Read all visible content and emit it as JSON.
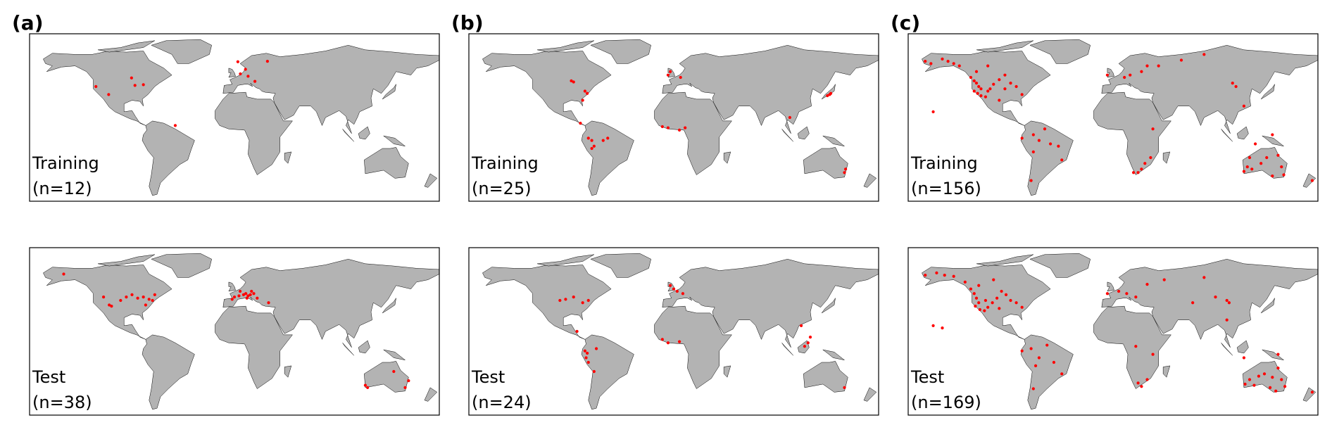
{
  "panels": [
    {
      "label": "(a)",
      "maps": [
        {
          "title": "Training",
          "count": "(n=12)",
          "points": [
            [
              -121.7,
              42
            ],
            [
              -90.4,
              49.5
            ],
            [
              -87.4,
              43
            ],
            [
              -110.5,
              35
            ],
            [
              -80,
              43.6
            ],
            [
              -52,
              8
            ],
            [
              3,
              63.6
            ],
            [
              5.2,
              53
            ],
            [
              12,
              51
            ],
            [
              18,
              46.5
            ],
            [
              29,
              64
            ],
            [
              9.7,
              57
            ]
          ]
        },
        {
          "title": "Test",
          "count": "(n=38)",
          "points": [
            [
              -150,
              65
            ],
            [
              -115,
              45
            ],
            [
              -110,
              38
            ],
            [
              -108,
              37
            ],
            [
              -100,
              42
            ],
            [
              -95,
              45
            ],
            [
              -90,
              47
            ],
            [
              -85,
              44
            ],
            [
              -80,
              45
            ],
            [
              -75,
              43
            ],
            [
              -72,
              42
            ],
            [
              -78,
              38
            ],
            [
              -70,
              47
            ],
            [
              -2,
              43
            ],
            [
              0,
              45
            ],
            [
              4,
              46
            ],
            [
              8,
              47
            ],
            [
              10,
              48
            ],
            [
              12,
              46
            ],
            [
              14,
              47
            ],
            [
              15,
              50
            ],
            [
              17,
              48
            ],
            [
              11,
              44
            ],
            [
              5,
              50
            ],
            [
              20,
              44
            ],
            [
              30,
              40
            ],
            [
              153,
              -28
            ],
            [
              140,
              -20
            ],
            [
              150,
              -34
            ],
            [
              115,
              -32
            ],
            [
              117,
              -34
            ]
          ]
        }
      ]
    },
    {
      "label": "(b)",
      "maps": [
        {
          "title": "Training",
          "count": "(n=25)",
          "points": [
            [
              -90,
              47
            ],
            [
              -88,
              46
            ],
            [
              -78,
              38
            ],
            [
              -76,
              36
            ],
            [
              -80,
              30
            ],
            [
              -82,
              10
            ],
            [
              -75,
              -3
            ],
            [
              -72,
              -5
            ],
            [
              -62,
              -5
            ],
            [
              -58,
              -3
            ],
            [
              -70,
              -10
            ],
            [
              -72,
              -12
            ],
            [
              -5,
              52
            ],
            [
              -3,
              55
            ],
            [
              -10,
              7
            ],
            [
              -5,
              6
            ],
            [
              5,
              4
            ],
            [
              10,
              6
            ],
            [
              102,
              15
            ],
            [
              135,
              34
            ],
            [
              137,
              35
            ],
            [
              138,
              36
            ],
            [
              151,
              -30
            ],
            [
              150,
              -33
            ],
            [
              6,
              50
            ]
          ]
        },
        {
          "title": "Test",
          "count": "(n=24)",
          "points": [
            [
              -100,
              42
            ],
            [
              -95,
              43
            ],
            [
              -88,
              45
            ],
            [
              -80,
              40
            ],
            [
              -75,
              42
            ],
            [
              -85,
              15
            ],
            [
              -78,
              -2
            ],
            [
              -76,
              -4
            ],
            [
              -77,
              -8
            ],
            [
              -75,
              -12
            ],
            [
              -70,
              -20
            ],
            [
              -68,
              0
            ],
            [
              -3,
              55
            ],
            [
              0,
              52
            ],
            [
              3,
              50
            ],
            [
              8,
              48
            ],
            [
              -10,
              8
            ],
            [
              -5,
              5
            ],
            [
              5,
              6
            ],
            [
              112,
              20
            ],
            [
              118,
              5
            ],
            [
              115,
              2
            ],
            [
              120,
              10
            ],
            [
              150,
              -34
            ]
          ]
        }
      ]
    },
    {
      "label": "(c)",
      "maps": [
        {
          "title": "Training",
          "count": "(n=156)",
          "points": [
            [
              -165,
              64
            ],
            [
              -160,
              62
            ],
            [
              -150,
              66
            ],
            [
              -145,
              64
            ],
            [
              -140,
              62
            ],
            [
              -135,
              60
            ],
            [
              -125,
              50
            ],
            [
              -122,
              47
            ],
            [
              -120,
              45
            ],
            [
              -118,
              42
            ],
            [
              -116,
              40
            ],
            [
              -122,
              38
            ],
            [
              -119,
              36
            ],
            [
              -116,
              34
            ],
            [
              -112,
              33
            ],
            [
              -110,
              38
            ],
            [
              -108,
              40
            ],
            [
              -105,
              44
            ],
            [
              -100,
              48
            ],
            [
              -95,
              52
            ],
            [
              -90,
              45
            ],
            [
              -85,
              42
            ],
            [
              -80,
              35
            ],
            [
              -100,
              30
            ],
            [
              -95,
              40
            ],
            [
              -120,
              55
            ],
            [
              -110,
              60
            ],
            [
              -158,
              20
            ],
            [
              -80,
              -3
            ],
            [
              -70,
              0
            ],
            [
              -65,
              -5
            ],
            [
              -60,
              5
            ],
            [
              -55,
              -8
            ],
            [
              -48,
              -10
            ],
            [
              -70,
              -15
            ],
            [
              -45,
              -22
            ],
            [
              -72,
              -40
            ],
            [
              -5,
              52
            ],
            [
              10,
              50
            ],
            [
              15,
              52
            ],
            [
              25,
              55
            ],
            [
              30,
              60
            ],
            [
              40,
              60
            ],
            [
              60,
              65
            ],
            [
              80,
              70
            ],
            [
              105,
              45
            ],
            [
              108,
              42
            ],
            [
              28,
              -25
            ],
            [
              22,
              -33
            ],
            [
              25,
              -30
            ],
            [
              18,
              -33
            ],
            [
              33,
              -20
            ],
            [
              35,
              5
            ],
            [
              115,
              25
            ],
            [
              125,
              -8
            ],
            [
              140,
              0
            ],
            [
              115,
              -32
            ],
            [
              118,
              -28
            ],
            [
              122,
              -30
            ],
            [
              130,
              -25
            ],
            [
              135,
              -20
            ],
            [
              145,
              -18
            ],
            [
              148,
              -28
            ],
            [
              150,
              -35
            ],
            [
              140,
              -36
            ],
            [
              120,
              -20
            ],
            [
              175,
              -40
            ]
          ]
        },
        {
          "title": "Test",
          "count": "(n=169)",
          "points": [
            [
              -165,
              64
            ],
            [
              -155,
              66
            ],
            [
              -148,
              64
            ],
            [
              -140,
              63
            ],
            [
              -130,
              58
            ],
            [
              -125,
              52
            ],
            [
              -122,
              48
            ],
            [
              -120,
              44
            ],
            [
              -118,
              40
            ],
            [
              -121,
              37
            ],
            [
              -117,
              34
            ],
            [
              -113,
              33
            ],
            [
              -110,
              36
            ],
            [
              -106,
              40
            ],
            [
              -102,
              44
            ],
            [
              -98,
              50
            ],
            [
              -94,
              47
            ],
            [
              -90,
              42
            ],
            [
              -85,
              40
            ],
            [
              -80,
              36
            ],
            [
              -100,
              35
            ],
            [
              -112,
              42
            ],
            [
              -118,
              55
            ],
            [
              -105,
              60
            ],
            [
              -158,
              20
            ],
            [
              -150,
              18
            ],
            [
              -80,
              -2
            ],
            [
              -72,
              0
            ],
            [
              -65,
              -8
            ],
            [
              -58,
              3
            ],
            [
              -52,
              -12
            ],
            [
              -45,
              -22
            ],
            [
              -68,
              -15
            ],
            [
              -70,
              -35
            ],
            [
              -5,
              48
            ],
            [
              5,
              50
            ],
            [
              12,
              48
            ],
            [
              20,
              45
            ],
            [
              30,
              56
            ],
            [
              45,
              60
            ],
            [
              80,
              62
            ],
            [
              90,
              45
            ],
            [
              100,
              42
            ],
            [
              102,
              40
            ],
            [
              70,
              40
            ],
            [
              30,
              -27
            ],
            [
              22,
              -30
            ],
            [
              25,
              -33
            ],
            [
              35,
              -5
            ],
            [
              100,
              25
            ],
            [
              115,
              -8
            ],
            [
              145,
              -5
            ],
            [
              116,
              -31
            ],
            [
              120,
              -27
            ],
            [
              124,
              -32
            ],
            [
              128,
              -24
            ],
            [
              133,
              -22
            ],
            [
              140,
              -25
            ],
            [
              145,
              -17
            ],
            [
              148,
              -27
            ],
            [
              151,
              -33
            ],
            [
              143,
              -37
            ],
            [
              138,
              -34
            ],
            [
              175,
              -38
            ],
            [
              20,
              2
            ]
          ]
        }
      ]
    }
  ]
}
